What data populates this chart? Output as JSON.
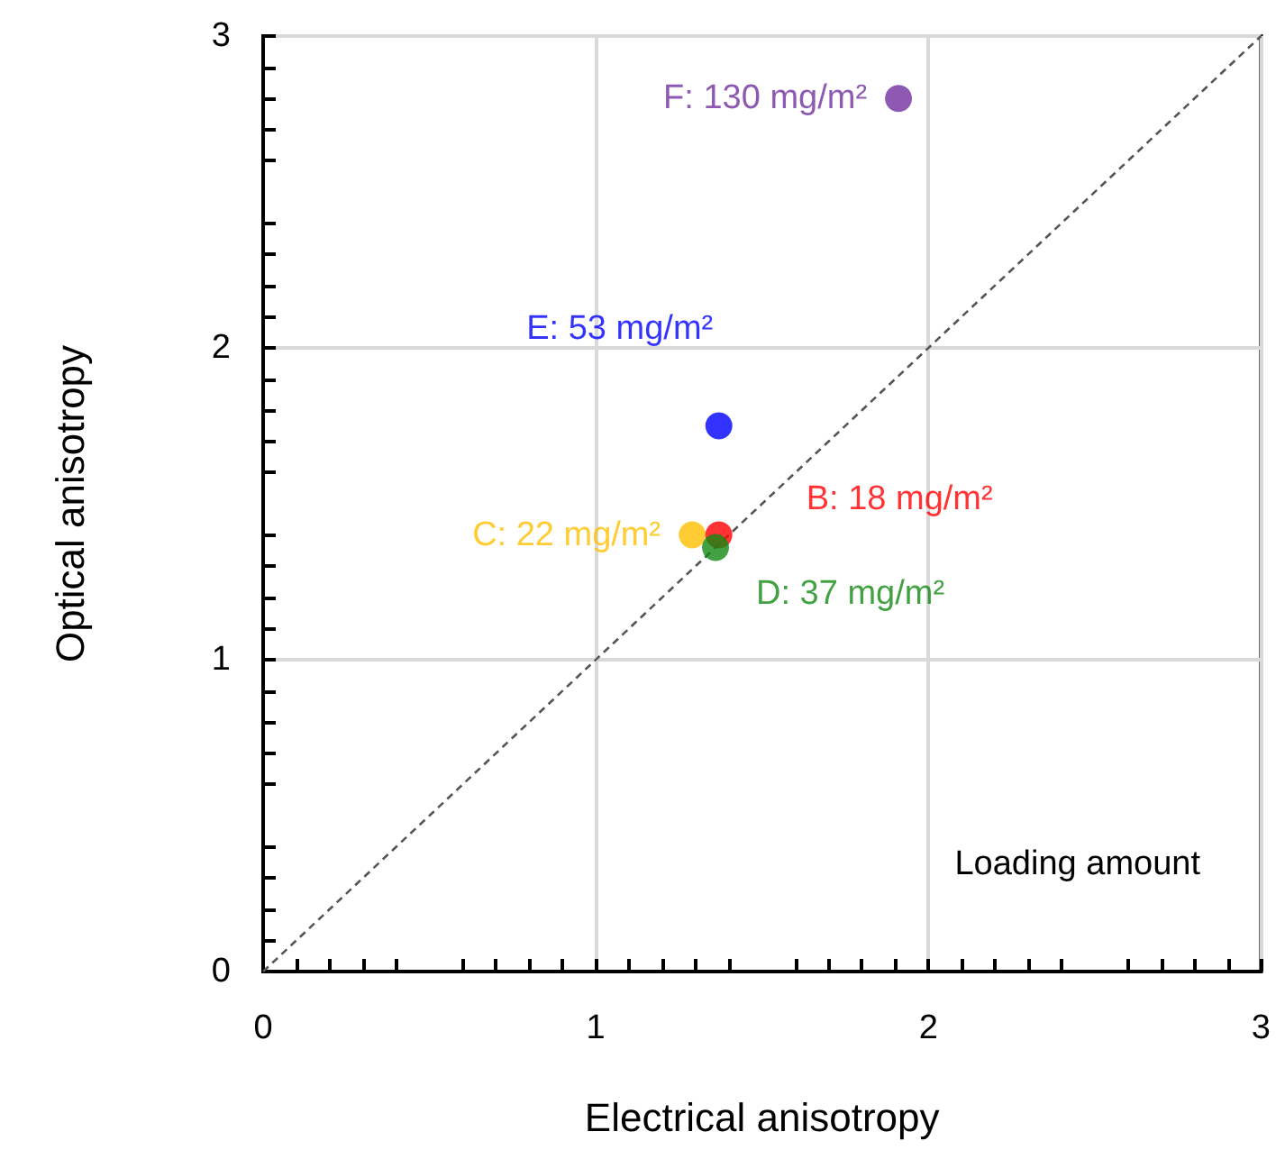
{
  "chart_data": {
    "type": "scatter",
    "xlabel": "Electrical anisotropy",
    "ylabel": "Optical anisotropy",
    "xlim": [
      0,
      3
    ],
    "xticks": [
      0,
      1,
      2,
      3
    ],
    "ylim": [
      0,
      3
    ],
    "yticks": [
      0,
      1,
      2,
      3
    ],
    "grid": true,
    "legend": false,
    "marker": "circle",
    "annotations": [
      "Loading amount"
    ],
    "series": [
      {
        "name": "C: 22 mg/m²",
        "color": "#ffc000",
        "x": [
          1.29
        ],
        "values": [
          1.4
        ]
      },
      {
        "name": "B: 18 mg/m²",
        "color": "#ff0000",
        "x": [
          1.37
        ],
        "values": [
          1.4
        ]
      },
      {
        "name": "D: 37 mg/m²",
        "color": "#138a13",
        "x": [
          1.36
        ],
        "values": [
          1.36
        ]
      },
      {
        "name": "E: 53 mg/m²",
        "color": "#0000ff",
        "x": [
          1.37
        ],
        "values": [
          1.75
        ]
      },
      {
        "name": "F: 130 mg/m²",
        "color": "#7030a0",
        "x": [
          1.91
        ],
        "values": [
          2.8
        ]
      },
      {
        "type": "line",
        "color": "#555555",
        "x": [
          0,
          3
        ],
        "values": [
          0,
          3
        ],
        "line_style": "dashed",
        "marker": "none"
      }
    ]
  }
}
